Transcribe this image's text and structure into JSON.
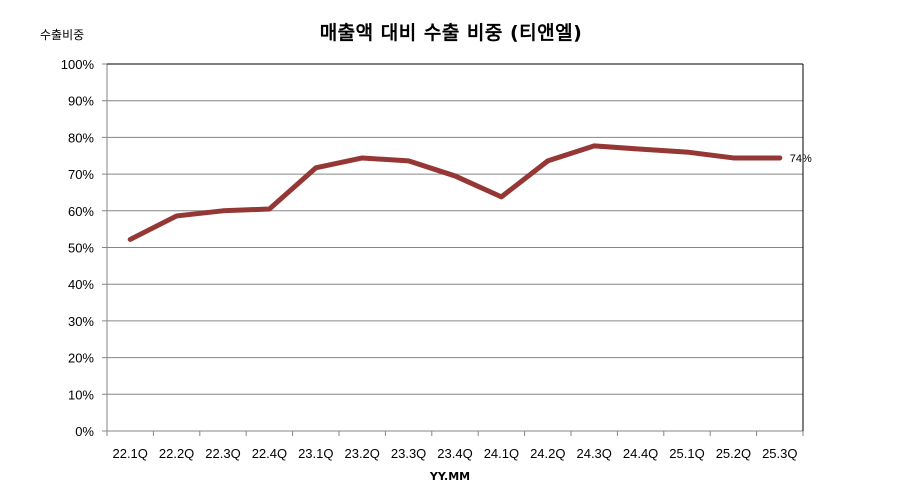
{
  "chart_data": {
    "type": "line",
    "title": "매출액 대비 수출 비중 (티앤엘)",
    "ylabel": "수출비중",
    "xlabel": "YY.MM",
    "ylim": [
      0,
      100
    ],
    "y_ticks": [
      "0%",
      "10%",
      "20%",
      "30%",
      "40%",
      "50%",
      "60%",
      "70%",
      "80%",
      "90%",
      "100%"
    ],
    "grid": true,
    "legend": null,
    "categories": [
      "22.1Q",
      "22.2Q",
      "22.3Q",
      "22.4Q",
      "23.1Q",
      "23.2Q",
      "23.3Q",
      "23.4Q",
      "24.1Q",
      "24.2Q",
      "24.3Q",
      "24.4Q",
      "25.1Q",
      "25.2Q",
      "25.3Q"
    ],
    "series": [
      {
        "name": "수출비중",
        "color": "#953735",
        "values": [
          52.2,
          58.6,
          60.0,
          60.5,
          71.7,
          74.4,
          73.6,
          69.5,
          63.8,
          73.6,
          77.7,
          76.8,
          76.0,
          74.4,
          74.4
        ]
      }
    ],
    "annotations": [
      {
        "category": "25.3Q",
        "text": "74%"
      }
    ]
  }
}
